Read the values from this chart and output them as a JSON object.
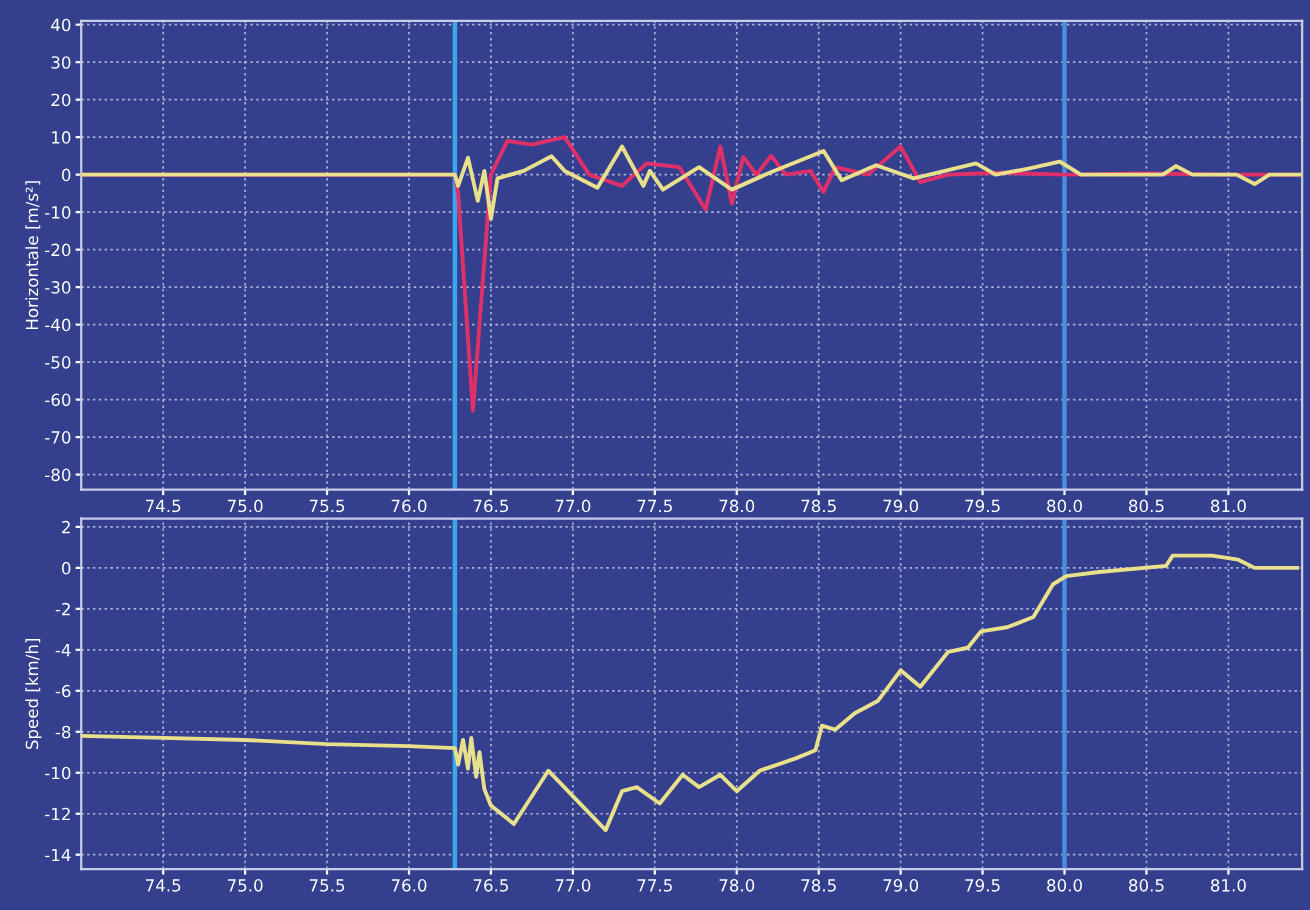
{
  "chart_data": [
    {
      "type": "line",
      "ylabel": "Horizontale [m/s²]",
      "grid": true,
      "marker": "none",
      "line_style": "solid",
      "xlim": [
        74.0,
        81.45
      ],
      "ylim": [
        -84,
        41
      ],
      "xticks": [
        {
          "value": 74.5,
          "label": "74.5"
        },
        {
          "value": 75.0,
          "label": "75.0"
        },
        {
          "value": 75.5,
          "label": "75.5"
        },
        {
          "value": 76.0,
          "label": "76.0"
        },
        {
          "value": 76.5,
          "label": "76.5"
        },
        {
          "value": 77.0,
          "label": "77.0"
        },
        {
          "value": 77.5,
          "label": "77.5"
        },
        {
          "value": 78.0,
          "label": "78.0"
        },
        {
          "value": 78.5,
          "label": "78.5"
        },
        {
          "value": 79.0,
          "label": "79.0"
        },
        {
          "value": 79.5,
          "label": "79.5"
        },
        {
          "value": 80.0,
          "label": "80.0"
        },
        {
          "value": 80.5,
          "label": "80.5"
        },
        {
          "value": 81.0,
          "label": "81.0"
        }
      ],
      "yticks": [
        -80,
        -70,
        -60,
        -50,
        -40,
        -30,
        -20,
        -10,
        0,
        10,
        20,
        30,
        40
      ],
      "ref_lines": [
        {
          "axis": "x",
          "value": 76.28,
          "color": "#3aa8ee"
        },
        {
          "axis": "x",
          "value": 80.0,
          "color": "#4a8ee0"
        }
      ],
      "series": [
        {
          "color": "#e0306a",
          "x": [
            74.0,
            76.28,
            76.3,
            76.39,
            76.5,
            76.6,
            76.75,
            76.95,
            77.1,
            77.3,
            77.45,
            77.65,
            77.81,
            77.9,
            77.97,
            78.04,
            78.12,
            78.21,
            78.3,
            78.45,
            78.53,
            78.6,
            78.8,
            79.0,
            79.12,
            79.29,
            79.6,
            80.0,
            80.5,
            81.0,
            81.45
          ],
          "values": [
            0,
            0,
            -5,
            -63,
            0,
            9,
            8,
            10,
            0,
            -3,
            3,
            2,
            -9.3,
            7.5,
            -7.7,
            4.7,
            0,
            5,
            0,
            1,
            -4.6,
            2,
            0,
            7.5,
            -2,
            0,
            0.5,
            0,
            0.3,
            0,
            0
          ]
        },
        {
          "color": "#e8e08a",
          "x": [
            74.0,
            76.28,
            76.3,
            76.36,
            76.42,
            76.46,
            76.5,
            76.54,
            76.7,
            76.87,
            76.95,
            77.15,
            77.3,
            77.43,
            77.47,
            77.55,
            77.77,
            77.97,
            78.2,
            78.53,
            78.64,
            78.85,
            79.08,
            79.46,
            79.58,
            79.78,
            79.97,
            80.1,
            80.6,
            80.68,
            80.78,
            81.05,
            81.16,
            81.25,
            81.45
          ],
          "values": [
            0,
            0,
            -3,
            4.5,
            -7,
            1,
            -11.8,
            -1,
            1,
            4.9,
            1,
            -3.5,
            7.5,
            -3,
            1,
            -4,
            2,
            -4,
            0.5,
            6.3,
            -1.5,
            2.5,
            -1,
            3,
            0,
            1.6,
            3.5,
            0,
            0,
            2.3,
            0,
            0,
            -2.5,
            0,
            0
          ]
        }
      ]
    },
    {
      "type": "line",
      "ylabel": "Speed [km/h]",
      "grid": true,
      "marker": "none",
      "line_style": "solid",
      "xlim": [
        74.0,
        81.45
      ],
      "ylim": [
        -14.7,
        2.4
      ],
      "xticks": [
        {
          "value": 74.5,
          "label": "74.5"
        },
        {
          "value": 75.0,
          "label": "75.0"
        },
        {
          "value": 75.5,
          "label": "75.5"
        },
        {
          "value": 76.0,
          "label": "76.0"
        },
        {
          "value": 76.5,
          "label": "76.5"
        },
        {
          "value": 77.0,
          "label": "77.0"
        },
        {
          "value": 77.5,
          "label": "77.5"
        },
        {
          "value": 78.0,
          "label": "78.0"
        },
        {
          "value": 78.5,
          "label": "78.5"
        },
        {
          "value": 79.0,
          "label": "79.0"
        },
        {
          "value": 79.5,
          "label": "79.5"
        },
        {
          "value": 80.0,
          "label": "80.0"
        },
        {
          "value": 80.5,
          "label": "80.5"
        },
        {
          "value": 81.0,
          "label": "81.0"
        }
      ],
      "yticks": [
        -14,
        -12,
        -10,
        -8,
        -6,
        -4,
        -2,
        0,
        2
      ],
      "ref_lines": [
        {
          "axis": "x",
          "value": 76.28,
          "color": "#3aa8ee"
        },
        {
          "axis": "x",
          "value": 80.0,
          "color": "#4a8ee0"
        }
      ],
      "series": [
        {
          "color": "#e8e08a",
          "x": [
            74.0,
            74.5,
            75.0,
            75.5,
            76.0,
            76.28,
            76.3,
            76.33,
            76.36,
            76.38,
            76.41,
            76.43,
            76.46,
            76.5,
            76.64,
            76.85,
            77.2,
            77.3,
            77.39,
            77.53,
            77.67,
            77.77,
            77.9,
            78.0,
            78.14,
            78.36,
            78.48,
            78.52,
            78.6,
            78.72,
            78.86,
            79.0,
            79.12,
            79.29,
            79.41,
            79.49,
            79.65,
            79.81,
            79.93,
            80.01,
            80.21,
            80.62,
            80.66,
            80.9,
            81.06,
            81.16,
            81.42
          ],
          "values": [
            -8.2,
            -8.3,
            -8.4,
            -8.6,
            -8.7,
            -8.8,
            -9.6,
            -8.4,
            -9.8,
            -8.3,
            -10.2,
            -9.0,
            -10.8,
            -11.6,
            -12.5,
            -9.9,
            -12.8,
            -10.9,
            -10.7,
            -11.5,
            -10.1,
            -10.7,
            -10.1,
            -10.9,
            -9.9,
            -9.3,
            -8.9,
            -7.7,
            -7.9,
            -7.1,
            -6.5,
            -5.0,
            -5.8,
            -4.1,
            -3.9,
            -3.1,
            -2.9,
            -2.4,
            -0.8,
            -0.4,
            -0.2,
            0.1,
            0.6,
            0.6,
            0.4,
            0.0,
            0.0
          ]
        }
      ]
    }
  ]
}
